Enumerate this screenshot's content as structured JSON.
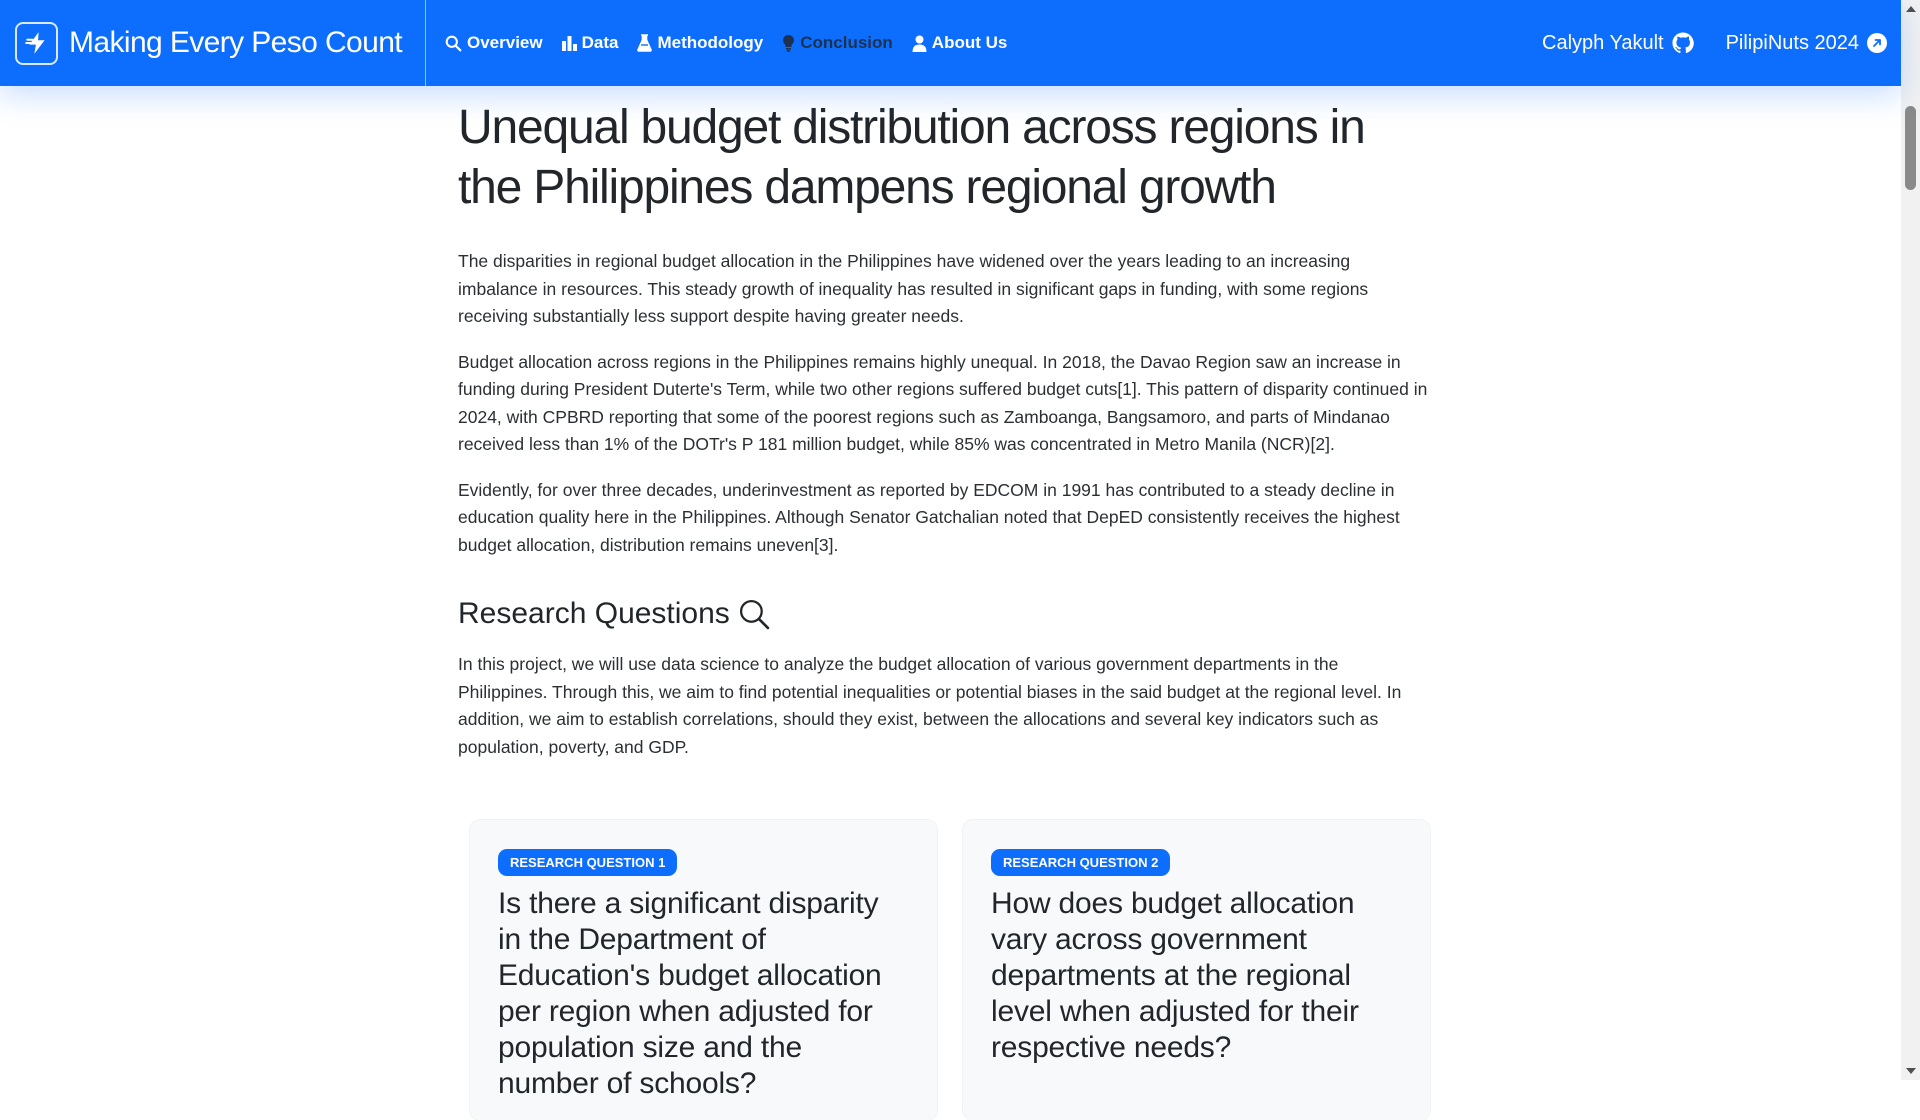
{
  "brand": {
    "name": "Making Every Peso Count",
    "logo_icon": "bolt-logo-icon"
  },
  "nav": {
    "links": [
      {
        "label": "Overview",
        "icon": "search-icon"
      },
      {
        "label": "Data",
        "icon": "bar-chart-icon"
      },
      {
        "label": "Methodology",
        "icon": "flask-icon"
      },
      {
        "label": "Conclusion",
        "icon": "lightbulb-icon",
        "active": true
      },
      {
        "label": "About Us",
        "icon": "person-icon"
      }
    ],
    "right": [
      {
        "label": "Calyph Yakult",
        "icon": "github-icon"
      },
      {
        "label": "PilipiNuts 2024",
        "icon": "external-link-icon"
      }
    ]
  },
  "colors": {
    "primary": "#0d6efd",
    "active_nav": "#1d3250",
    "card_bg": "#f8f9fb"
  },
  "main": {
    "title": "Unequal budget distribution across regions in the Philippines dampens regional growth",
    "paragraphs": [
      "The disparities in regional budget allocation in the Philippines have widened over the years leading to an increasing imbalance in resources. This steady growth of inequality has resulted in significant gaps in funding, with some regions receiving substantially less support despite having greater needs.",
      "Budget allocation across regions in the Philippines remains highly unequal. In 2018, the Davao Region saw an increase in funding during President Duterte's Term, while two other regions suffered budget cuts[1]. This pattern of disparity continued in 2024, with CPBRD reporting that some of the poorest regions such as Zamboanga, Bangsamoro, and parts of Mindanao received less than 1% of the DOTr's P 181 million budget, while 85% was concentrated in Metro Manila (NCR)[2].",
      "Evidently, for over three decades, underinvestment as reported by EDCOM in 1991 has contributed to a steady decline in education quality here in the Philippines. Although Senator Gatchalian noted that DepED consistently receives the highest budget allocation, distribution remains uneven[3]."
    ],
    "rq_heading": "Research Questions",
    "rq_intro": "In this project, we will use data science to analyze the budget allocation of various government departments in the Philippines. Through this, we aim to find potential inequalities or potential biases in the said budget at the regional level. In addition, we aim to establish correlations, should they exist, between the allocations and several key indicators such as population, poverty, and GDP.",
    "cards": [
      {
        "badge": "RESEARCH QUESTION 1",
        "question": "Is there a significant disparity in the Department of Education's budget allocation per region when adjusted for population size and the number of schools?"
      },
      {
        "badge": "RESEARCH QUESTION 2",
        "question": "How does budget allocation vary across government departments at the regional level when adjusted for their respective needs?"
      }
    ]
  }
}
